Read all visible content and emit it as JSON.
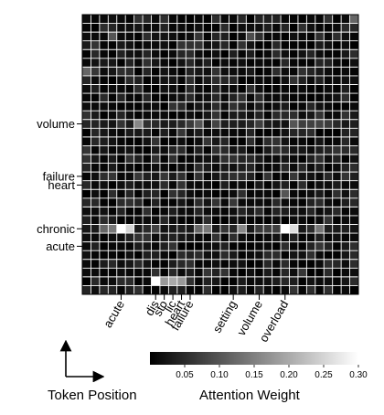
{
  "chart_data": {
    "type": "heatmap",
    "rows": 32,
    "cols": 32,
    "y_tick_labels": [
      {
        "row": 12,
        "label": "volume"
      },
      {
        "row": 18,
        "label": "failure"
      },
      {
        "row": 19,
        "label": "heart"
      },
      {
        "row": 24,
        "label": "chronic"
      },
      {
        "row": 26,
        "label": "acute"
      }
    ],
    "x_tick_labels": [
      {
        "col": 4,
        "label": "acute"
      },
      {
        "col": 8,
        "label": "dis"
      },
      {
        "col": 9,
        "label": "sto"
      },
      {
        "col": 10,
        "label": "lic"
      },
      {
        "col": 11,
        "label": "heart"
      },
      {
        "col": 12,
        "label": "failure"
      },
      {
        "col": 17,
        "label": "setting"
      },
      {
        "col": 20,
        "label": "volume"
      },
      {
        "col": 23,
        "label": "overload"
      }
    ],
    "highlight_cells": [
      {
        "row": 24,
        "col": 4,
        "value": 0.3
      },
      {
        "row": 24,
        "col": 5,
        "value": 0.25
      },
      {
        "row": 24,
        "col": 23,
        "value": 0.3
      },
      {
        "row": 24,
        "col": 24,
        "value": 0.26
      },
      {
        "row": 24,
        "col": 2,
        "value": 0.12
      },
      {
        "row": 24,
        "col": 3,
        "value": 0.14
      },
      {
        "row": 24,
        "col": 13,
        "value": 0.12
      },
      {
        "row": 24,
        "col": 14,
        "value": 0.14
      },
      {
        "row": 24,
        "col": 18,
        "value": 0.16
      },
      {
        "row": 24,
        "col": 27,
        "value": 0.14
      },
      {
        "row": 30,
        "col": 8,
        "value": 0.3
      },
      {
        "row": 30,
        "col": 9,
        "value": 0.18
      },
      {
        "row": 30,
        "col": 10,
        "value": 0.2
      },
      {
        "row": 30,
        "col": 11,
        "value": 0.18
      },
      {
        "row": 12,
        "col": 6,
        "value": 0.16
      },
      {
        "row": 12,
        "col": 13,
        "value": 0.1
      },
      {
        "row": 12,
        "col": 24,
        "value": 0.1
      },
      {
        "row": 2,
        "col": 3,
        "value": 0.1
      },
      {
        "row": 2,
        "col": 19,
        "value": 0.09
      },
      {
        "row": 0,
        "col": 31,
        "value": 0.12
      },
      {
        "row": 6,
        "col": 0,
        "value": 0.12
      },
      {
        "row": 20,
        "col": 23,
        "value": 0.1
      }
    ],
    "colorbar": {
      "label": "Attention Weight",
      "range": [
        0,
        0.3
      ],
      "ticks": [
        "0.05",
        "0.10",
        "0.15",
        "0.20",
        "0.25",
        "0.30"
      ],
      "colormap": "gray"
    },
    "grid": true,
    "xlabel": "Token Position"
  }
}
